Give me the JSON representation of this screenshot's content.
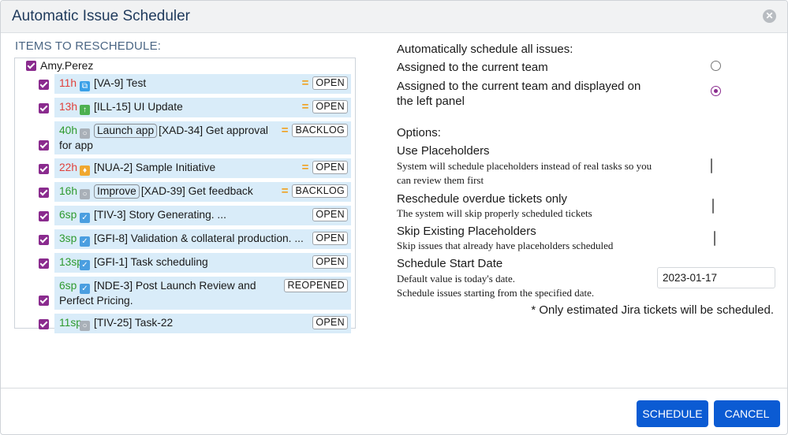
{
  "dialog": {
    "title": "Automatic Issue Scheduler"
  },
  "items": {
    "heading": "ITEMS TO RESCHEDULE:",
    "user": "Amy.Perez",
    "user_checked": true,
    "rows": [
      {
        "estimate": "11h",
        "estimate_color": "#e0403a",
        "title": "[VA-9] Test",
        "status": "OPEN",
        "checked": true
      },
      {
        "estimate": "13h",
        "estimate_color": "#e0403a",
        "title": "[ILL-15] UI Update",
        "status": "OPEN",
        "checked": true
      },
      {
        "estimate": "40h",
        "estimate_color": "#2e9a2e",
        "label": "Launch app",
        "title": "[XAD-34] Get approval for app",
        "status": "BACKLOG",
        "checked": true
      },
      {
        "estimate": "22h",
        "estimate_color": "#e0403a",
        "title": "[NUA-2] Sample Initiative",
        "status": "OPEN",
        "checked": true
      },
      {
        "estimate": "16h",
        "estimate_color": "#2e9a2e",
        "label": "Improve",
        "title": "[XAD-39] Get feedback",
        "status": "BACKLOG",
        "checked": true
      },
      {
        "estimate": "6sp",
        "estimate_color": "#2e9a2e",
        "title": "[TIV-3] Story Generating. ...",
        "status": "OPEN",
        "checked": true
      },
      {
        "estimate": "3sp",
        "estimate_color": "#2e9a2e",
        "title": "[GFI-8] Validation & collateral production. ...",
        "status": "OPEN",
        "checked": true
      },
      {
        "estimate": "13sp",
        "estimate_color": "#2e9a2e",
        "title": "[GFI-1] Task scheduling",
        "status": "OPEN",
        "checked": true
      },
      {
        "estimate": "6sp",
        "estimate_color": "#2e9a2e",
        "title": "[NDE-3] Post Launch Review and Perfect Pricing.",
        "status": "REOPENED",
        "checked": true
      },
      {
        "estimate": "11sp",
        "estimate_color": "#2e9a2e",
        "title": "[TIV-25] Task-22",
        "status": "OPEN",
        "checked": true
      }
    ]
  },
  "auto": {
    "heading": "Automatically schedule all issues:",
    "choices": [
      {
        "label": "Assigned to the current team",
        "selected": false
      },
      {
        "label": "Assigned to the current team and displayed on the left panel",
        "selected": true
      }
    ]
  },
  "options": {
    "heading": "Options:",
    "items": [
      {
        "label": "Use Placeholders",
        "description": "System will schedule placeholders instead of real tasks so you can review them first",
        "checked": false
      },
      {
        "label": "Reschedule overdue tickets only",
        "description": "The system will skip properly scheduled tickets",
        "checked": false
      },
      {
        "label": "Skip Existing Placeholders",
        "description": "Skip issues that already have placeholders scheduled",
        "checked": false
      }
    ]
  },
  "start_date": {
    "label": "Schedule Start Date",
    "hint": "Default value is today's date.",
    "description": "Schedule issues starting from the specified date.",
    "value": "2023-01-17"
  },
  "note": "* Only estimated Jira tickets will be scheduled.",
  "buttons": {
    "schedule": "SCHEDULE",
    "cancel": "CANCEL"
  }
}
